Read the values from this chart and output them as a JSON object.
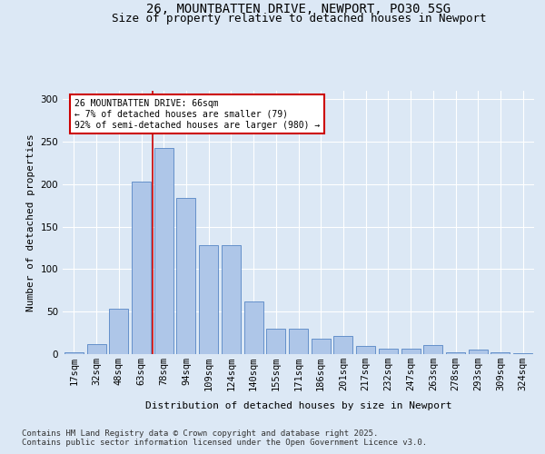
{
  "title_line1": "26, MOUNTBATTEN DRIVE, NEWPORT, PO30 5SG",
  "title_line2": "Size of property relative to detached houses in Newport",
  "xlabel": "Distribution of detached houses by size in Newport",
  "ylabel": "Number of detached properties",
  "footer_line1": "Contains HM Land Registry data © Crown copyright and database right 2025.",
  "footer_line2": "Contains public sector information licensed under the Open Government Licence v3.0.",
  "annotation_title": "26 MOUNTBATTEN DRIVE: 66sqm",
  "annotation_line2": "← 7% of detached houses are smaller (79)",
  "annotation_line3": "92% of semi-detached houses are larger (980) →",
  "bar_categories": [
    "17sqm",
    "32sqm",
    "48sqm",
    "63sqm",
    "78sqm",
    "94sqm",
    "109sqm",
    "124sqm",
    "140sqm",
    "155sqm",
    "171sqm",
    "186sqm",
    "201sqm",
    "217sqm",
    "232sqm",
    "247sqm",
    "263sqm",
    "278sqm",
    "293sqm",
    "309sqm",
    "324sqm"
  ],
  "bar_values": [
    2,
    12,
    53,
    203,
    243,
    184,
    128,
    128,
    62,
    30,
    30,
    18,
    21,
    10,
    6,
    6,
    11,
    2,
    5,
    2,
    1
  ],
  "bar_color": "#aec6e8",
  "bar_edge_color": "#5585c5",
  "vline_x": 3.5,
  "vline_color": "#cc0000",
  "ylim": [
    0,
    310
  ],
  "yticks": [
    0,
    50,
    100,
    150,
    200,
    250,
    300
  ],
  "bg_color": "#dce8f5",
  "plot_bg_color": "#dce8f5",
  "grid_color": "#ffffff",
  "title_fontsize": 10,
  "subtitle_fontsize": 9,
  "annotation_fontsize": 7,
  "axis_label_fontsize": 8,
  "tick_fontsize": 7.5,
  "footer_fontsize": 6.5
}
